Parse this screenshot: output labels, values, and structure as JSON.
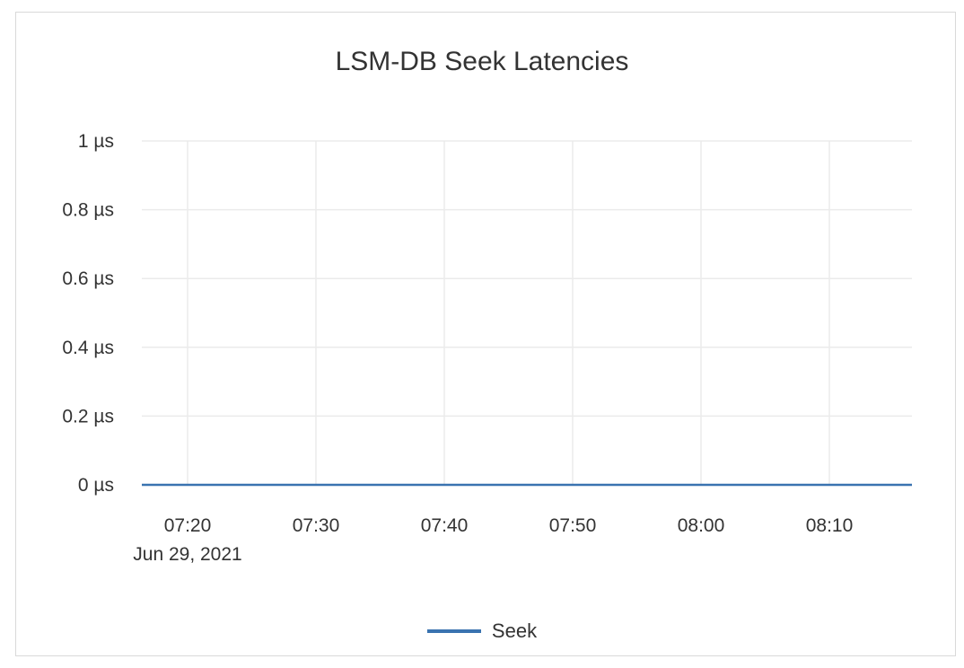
{
  "chart_data": {
    "type": "line",
    "title": "LSM-DB Seek Latencies",
    "xlabel": "",
    "ylabel": "",
    "x_ticks": [
      "07:20",
      "07:30",
      "07:40",
      "07:50",
      "08:00",
      "08:10"
    ],
    "x_date_label": "Jun 29, 2021",
    "xlim": [
      "07:16:26",
      "08:16:26"
    ],
    "y_ticks": [
      "0 µs",
      "0.2 µs",
      "0.4 µs",
      "0.6 µs",
      "0.8 µs",
      "1 µs"
    ],
    "y_tick_values": [
      0,
      0.2,
      0.4,
      0.6,
      0.8,
      1
    ],
    "ylim": [
      0,
      1
    ],
    "y_unit": "µs",
    "grid": true,
    "legend_position": "bottom",
    "series": [
      {
        "name": "Seek",
        "color": "#3a73b0",
        "x": [
          "07:16:26",
          "07:30",
          "07:45",
          "08:00",
          "08:16:26"
        ],
        "values": [
          0,
          0,
          0,
          0,
          0
        ]
      }
    ]
  }
}
